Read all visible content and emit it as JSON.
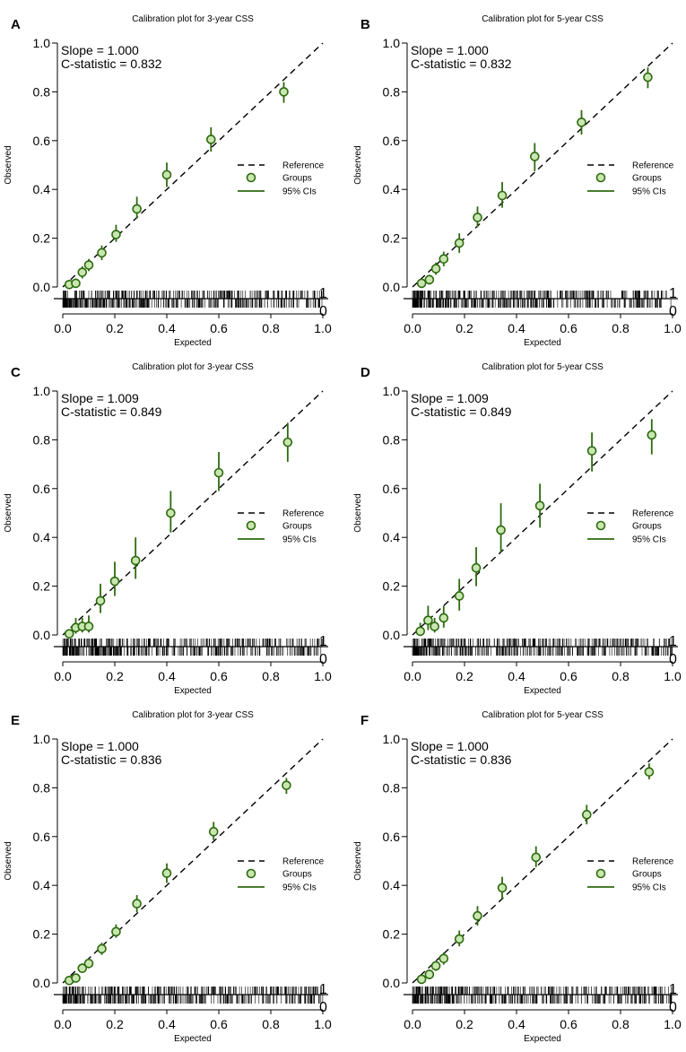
{
  "chart_data": [
    {
      "panel": "A",
      "type": "scatter",
      "title": "Calibration plot for 3-year CSS",
      "xlabel": "Expected",
      "ylabel": "Observed",
      "xlim": [
        0,
        1
      ],
      "ylim": [
        0,
        1
      ],
      "x_ticks": [
        "0.0",
        "0.2",
        "0.4",
        "0.6",
        "0.8",
        "1.0"
      ],
      "y_ticks": [
        "0.0",
        "0.2",
        "0.4",
        "0.6",
        "0.8",
        "1.0"
      ],
      "slope_text": "Slope = 1.000",
      "cstat_text": "C-statistic = 0.832",
      "rug_labels": [
        "1",
        "0"
      ],
      "legend": [
        "Reference",
        "Groups",
        "95% CIs"
      ],
      "series": [
        {
          "name": "Groups",
          "x": [
            0.025,
            0.05,
            0.075,
            0.1,
            0.15,
            0.205,
            0.285,
            0.4,
            0.57,
            0.85
          ],
          "y": [
            0.01,
            0.015,
            0.06,
            0.09,
            0.14,
            0.215,
            0.32,
            0.46,
            0.605,
            0.8
          ],
          "lower": [
            0.0,
            0.0,
            0.035,
            0.065,
            0.11,
            0.185,
            0.28,
            0.41,
            0.555,
            0.755
          ],
          "upper": [
            0.025,
            0.035,
            0.085,
            0.115,
            0.17,
            0.255,
            0.37,
            0.51,
            0.655,
            0.84
          ]
        }
      ]
    },
    {
      "panel": "B",
      "type": "scatter",
      "title": "Calibration plot for 5-year CSS",
      "xlabel": "Expected",
      "ylabel": "Observed",
      "xlim": [
        0,
        1
      ],
      "ylim": [
        0,
        1
      ],
      "x_ticks": [
        "0.0",
        "0.2",
        "0.4",
        "0.6",
        "0.8",
        "1.0"
      ],
      "y_ticks": [
        "0.0",
        "0.2",
        "0.4",
        "0.6",
        "0.8",
        "1.0"
      ],
      "slope_text": "Slope = 1.000",
      "cstat_text": "C-statistic = 0.832",
      "rug_labels": [
        "1",
        "0"
      ],
      "legend": [
        "Reference",
        "Groups",
        "95% CIs"
      ],
      "series": [
        {
          "name": "Groups",
          "x": [
            0.035,
            0.065,
            0.09,
            0.12,
            0.18,
            0.25,
            0.345,
            0.47,
            0.65,
            0.905
          ],
          "y": [
            0.015,
            0.03,
            0.075,
            0.115,
            0.18,
            0.285,
            0.375,
            0.535,
            0.675,
            0.86
          ],
          "lower": [
            0.0,
            0.01,
            0.05,
            0.085,
            0.14,
            0.245,
            0.325,
            0.475,
            0.625,
            0.815
          ],
          "upper": [
            0.03,
            0.05,
            0.1,
            0.145,
            0.22,
            0.33,
            0.43,
            0.59,
            0.725,
            0.9
          ]
        }
      ]
    },
    {
      "panel": "C",
      "type": "scatter",
      "title": "Calibration plot for 3-year CSS",
      "xlabel": "Expected",
      "ylabel": "Observed",
      "xlim": [
        0,
        1
      ],
      "ylim": [
        0,
        1
      ],
      "x_ticks": [
        "0.0",
        "0.2",
        "0.4",
        "0.6",
        "0.8",
        "1.0"
      ],
      "y_ticks": [
        "0.0",
        "0.2",
        "0.4",
        "0.6",
        "0.8",
        "1.0"
      ],
      "slope_text": "Slope = 1.009",
      "cstat_text": "C-statistic = 0.849",
      "rug_labels": [
        "1",
        "0"
      ],
      "legend": [
        "Reference",
        "Groups",
        "95% CIs"
      ],
      "series": [
        {
          "name": "Groups",
          "x": [
            0.025,
            0.05,
            0.075,
            0.1,
            0.145,
            0.2,
            0.28,
            0.415,
            0.6,
            0.865
          ],
          "y": [
            0.005,
            0.03,
            0.035,
            0.035,
            0.14,
            0.22,
            0.305,
            0.5,
            0.665,
            0.79
          ],
          "lower": [
            0.0,
            0.005,
            0.01,
            0.01,
            0.09,
            0.16,
            0.23,
            0.42,
            0.59,
            0.71
          ],
          "upper": [
            0.02,
            0.07,
            0.07,
            0.08,
            0.21,
            0.3,
            0.4,
            0.59,
            0.75,
            0.87
          ]
        }
      ]
    },
    {
      "panel": "D",
      "type": "scatter",
      "title": "Calibration plot for 5-year CSS",
      "xlabel": "Expected",
      "ylabel": "Observed",
      "xlim": [
        0,
        1
      ],
      "ylim": [
        0,
        1
      ],
      "x_ticks": [
        "0.0",
        "0.2",
        "0.4",
        "0.6",
        "0.8",
        "1.0"
      ],
      "y_ticks": [
        "0.0",
        "0.2",
        "0.4",
        "0.6",
        "0.8",
        "1.0"
      ],
      "slope_text": "Slope = 1.009",
      "cstat_text": "C-statistic = 0.849",
      "rug_labels": [
        "1",
        "0"
      ],
      "legend": [
        "Reference",
        "Groups",
        "95% CIs"
      ],
      "series": [
        {
          "name": "Groups",
          "x": [
            0.03,
            0.06,
            0.085,
            0.12,
            0.18,
            0.245,
            0.34,
            0.49,
            0.69,
            0.92
          ],
          "y": [
            0.015,
            0.06,
            0.035,
            0.07,
            0.16,
            0.275,
            0.43,
            0.53,
            0.755,
            0.82
          ],
          "lower": [
            0.0,
            0.02,
            0.01,
            0.03,
            0.1,
            0.2,
            0.34,
            0.44,
            0.67,
            0.74
          ],
          "upper": [
            0.05,
            0.12,
            0.07,
            0.12,
            0.23,
            0.36,
            0.54,
            0.62,
            0.83,
            0.885
          ]
        }
      ]
    },
    {
      "panel": "E",
      "type": "scatter",
      "title": "Calibration plot for 3-year CSS",
      "xlabel": "Expected",
      "ylabel": "Observed",
      "xlim": [
        0,
        1
      ],
      "ylim": [
        0,
        1
      ],
      "x_ticks": [
        "0.0",
        "0.2",
        "0.4",
        "0.6",
        "0.8",
        "1.0"
      ],
      "y_ticks": [
        "0.0",
        "0.2",
        "0.4",
        "0.6",
        "0.8",
        "1.0"
      ],
      "slope_text": "Slope = 1.000",
      "cstat_text": "C-statistic = 0.836",
      "rug_labels": [
        "1",
        "0"
      ],
      "legend": [
        "Reference",
        "Groups",
        "95% CIs"
      ],
      "series": [
        {
          "name": "Groups",
          "x": [
            0.025,
            0.05,
            0.075,
            0.1,
            0.15,
            0.205,
            0.285,
            0.4,
            0.58,
            0.86
          ],
          "y": [
            0.01,
            0.02,
            0.06,
            0.08,
            0.14,
            0.21,
            0.325,
            0.45,
            0.62,
            0.81
          ],
          "lower": [
            0.0,
            0.005,
            0.045,
            0.06,
            0.115,
            0.185,
            0.29,
            0.41,
            0.585,
            0.775
          ],
          "upper": [
            0.02,
            0.035,
            0.08,
            0.1,
            0.165,
            0.24,
            0.36,
            0.49,
            0.66,
            0.84
          ]
        }
      ]
    },
    {
      "panel": "F",
      "type": "scatter",
      "title": "Calibration plot for 5-year CSS",
      "xlabel": "Expected",
      "ylabel": "Observed",
      "xlim": [
        0,
        1
      ],
      "ylim": [
        0,
        1
      ],
      "x_ticks": [
        "0.0",
        "0.2",
        "0.4",
        "0.6",
        "0.8",
        "1.0"
      ],
      "y_ticks": [
        "0.0",
        "0.2",
        "0.4",
        "0.6",
        "0.8",
        "1.0"
      ],
      "slope_text": "Slope = 1.000",
      "cstat_text": "C-statistic = 0.836",
      "rug_labels": [
        "1",
        "0"
      ],
      "legend": [
        "Reference",
        "Groups",
        "95% CIs"
      ],
      "series": [
        {
          "name": "Groups",
          "x": [
            0.035,
            0.065,
            0.09,
            0.12,
            0.18,
            0.25,
            0.345,
            0.475,
            0.67,
            0.91
          ],
          "y": [
            0.015,
            0.035,
            0.07,
            0.1,
            0.18,
            0.275,
            0.39,
            0.515,
            0.69,
            0.865
          ],
          "lower": [
            0.0,
            0.015,
            0.05,
            0.075,
            0.15,
            0.235,
            0.345,
            0.475,
            0.65,
            0.835
          ],
          "upper": [
            0.03,
            0.055,
            0.09,
            0.125,
            0.215,
            0.315,
            0.435,
            0.56,
            0.73,
            0.9
          ]
        }
      ]
    }
  ],
  "colors": {
    "accent": "#2d6a0f",
    "point_fill": "#c9e6b0",
    "reference": "#000000"
  }
}
